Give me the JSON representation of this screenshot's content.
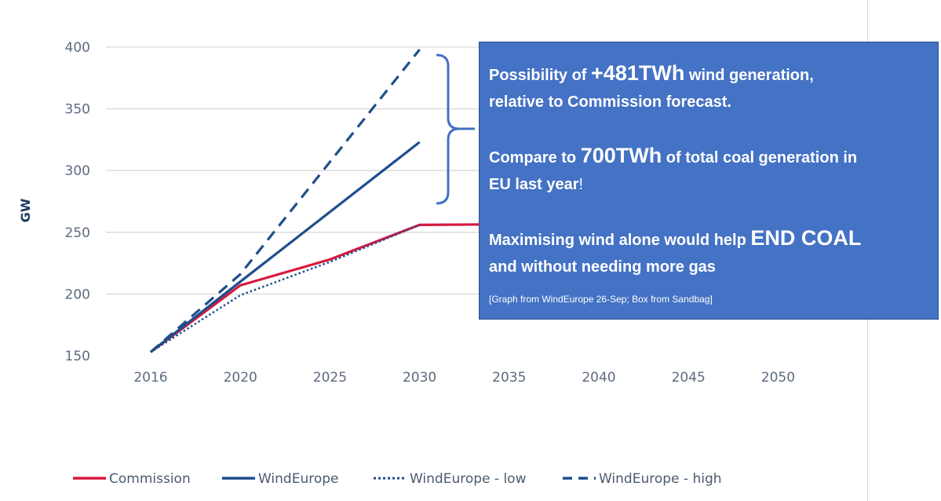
{
  "chart_data": {
    "type": "line",
    "ylabel": "GW",
    "xlabel": "",
    "title": "",
    "ylim": [
      150,
      400
    ],
    "yticks": [
      400,
      350,
      300,
      250,
      200,
      150
    ],
    "xticks": [
      2016,
      2020,
      2025,
      2030,
      2035,
      2040,
      2045,
      2050
    ],
    "grid": "horizontal",
    "legend_position": "bottom",
    "series": [
      {
        "name": "Commission",
        "style": "solid",
        "color": "#d7193f",
        "x": [
          2016,
          2020,
          2025,
          2030,
          2050
        ],
        "y": [
          153,
          207,
          228,
          256,
          258
        ]
      },
      {
        "name": "WindEurope",
        "style": "solid",
        "color": "#1f4e8c",
        "x": [
          2016,
          2020,
          2030
        ],
        "y": [
          153,
          210,
          323
        ]
      },
      {
        "name": "WindEurope - low",
        "style": "dotted",
        "color": "#1f4e8c",
        "x": [
          2016,
          2020,
          2025,
          2030
        ],
        "y": [
          153,
          199,
          226,
          256
        ]
      },
      {
        "name": "WindEurope - high",
        "style": "dashed",
        "color": "#1f4e8c",
        "x": [
          2016,
          2020,
          2030
        ],
        "y": [
          153,
          216,
          398
        ]
      }
    ]
  },
  "callout": {
    "l1a": "Possibility of ",
    "l1b": "+481TWh",
    "l1c": " wind generation,",
    "l2": "relative to Commission forecast.",
    "l3a": "Compare to ",
    "l3b": "700TWh",
    "l3c": " of total coal generation in",
    "l4a": "EU last year",
    "l4b": "!",
    "l5a": "Maximising wind alone would help ",
    "l5b": "END COAL",
    "l6": "and without needing more gas",
    "credit": "[Graph from WindEurope 26-Sep; Box from Sandbag]"
  },
  "colors": {
    "callout_bg": "#4472c4",
    "bracket": "#4472c4",
    "grid": "#d9d9d9"
  }
}
